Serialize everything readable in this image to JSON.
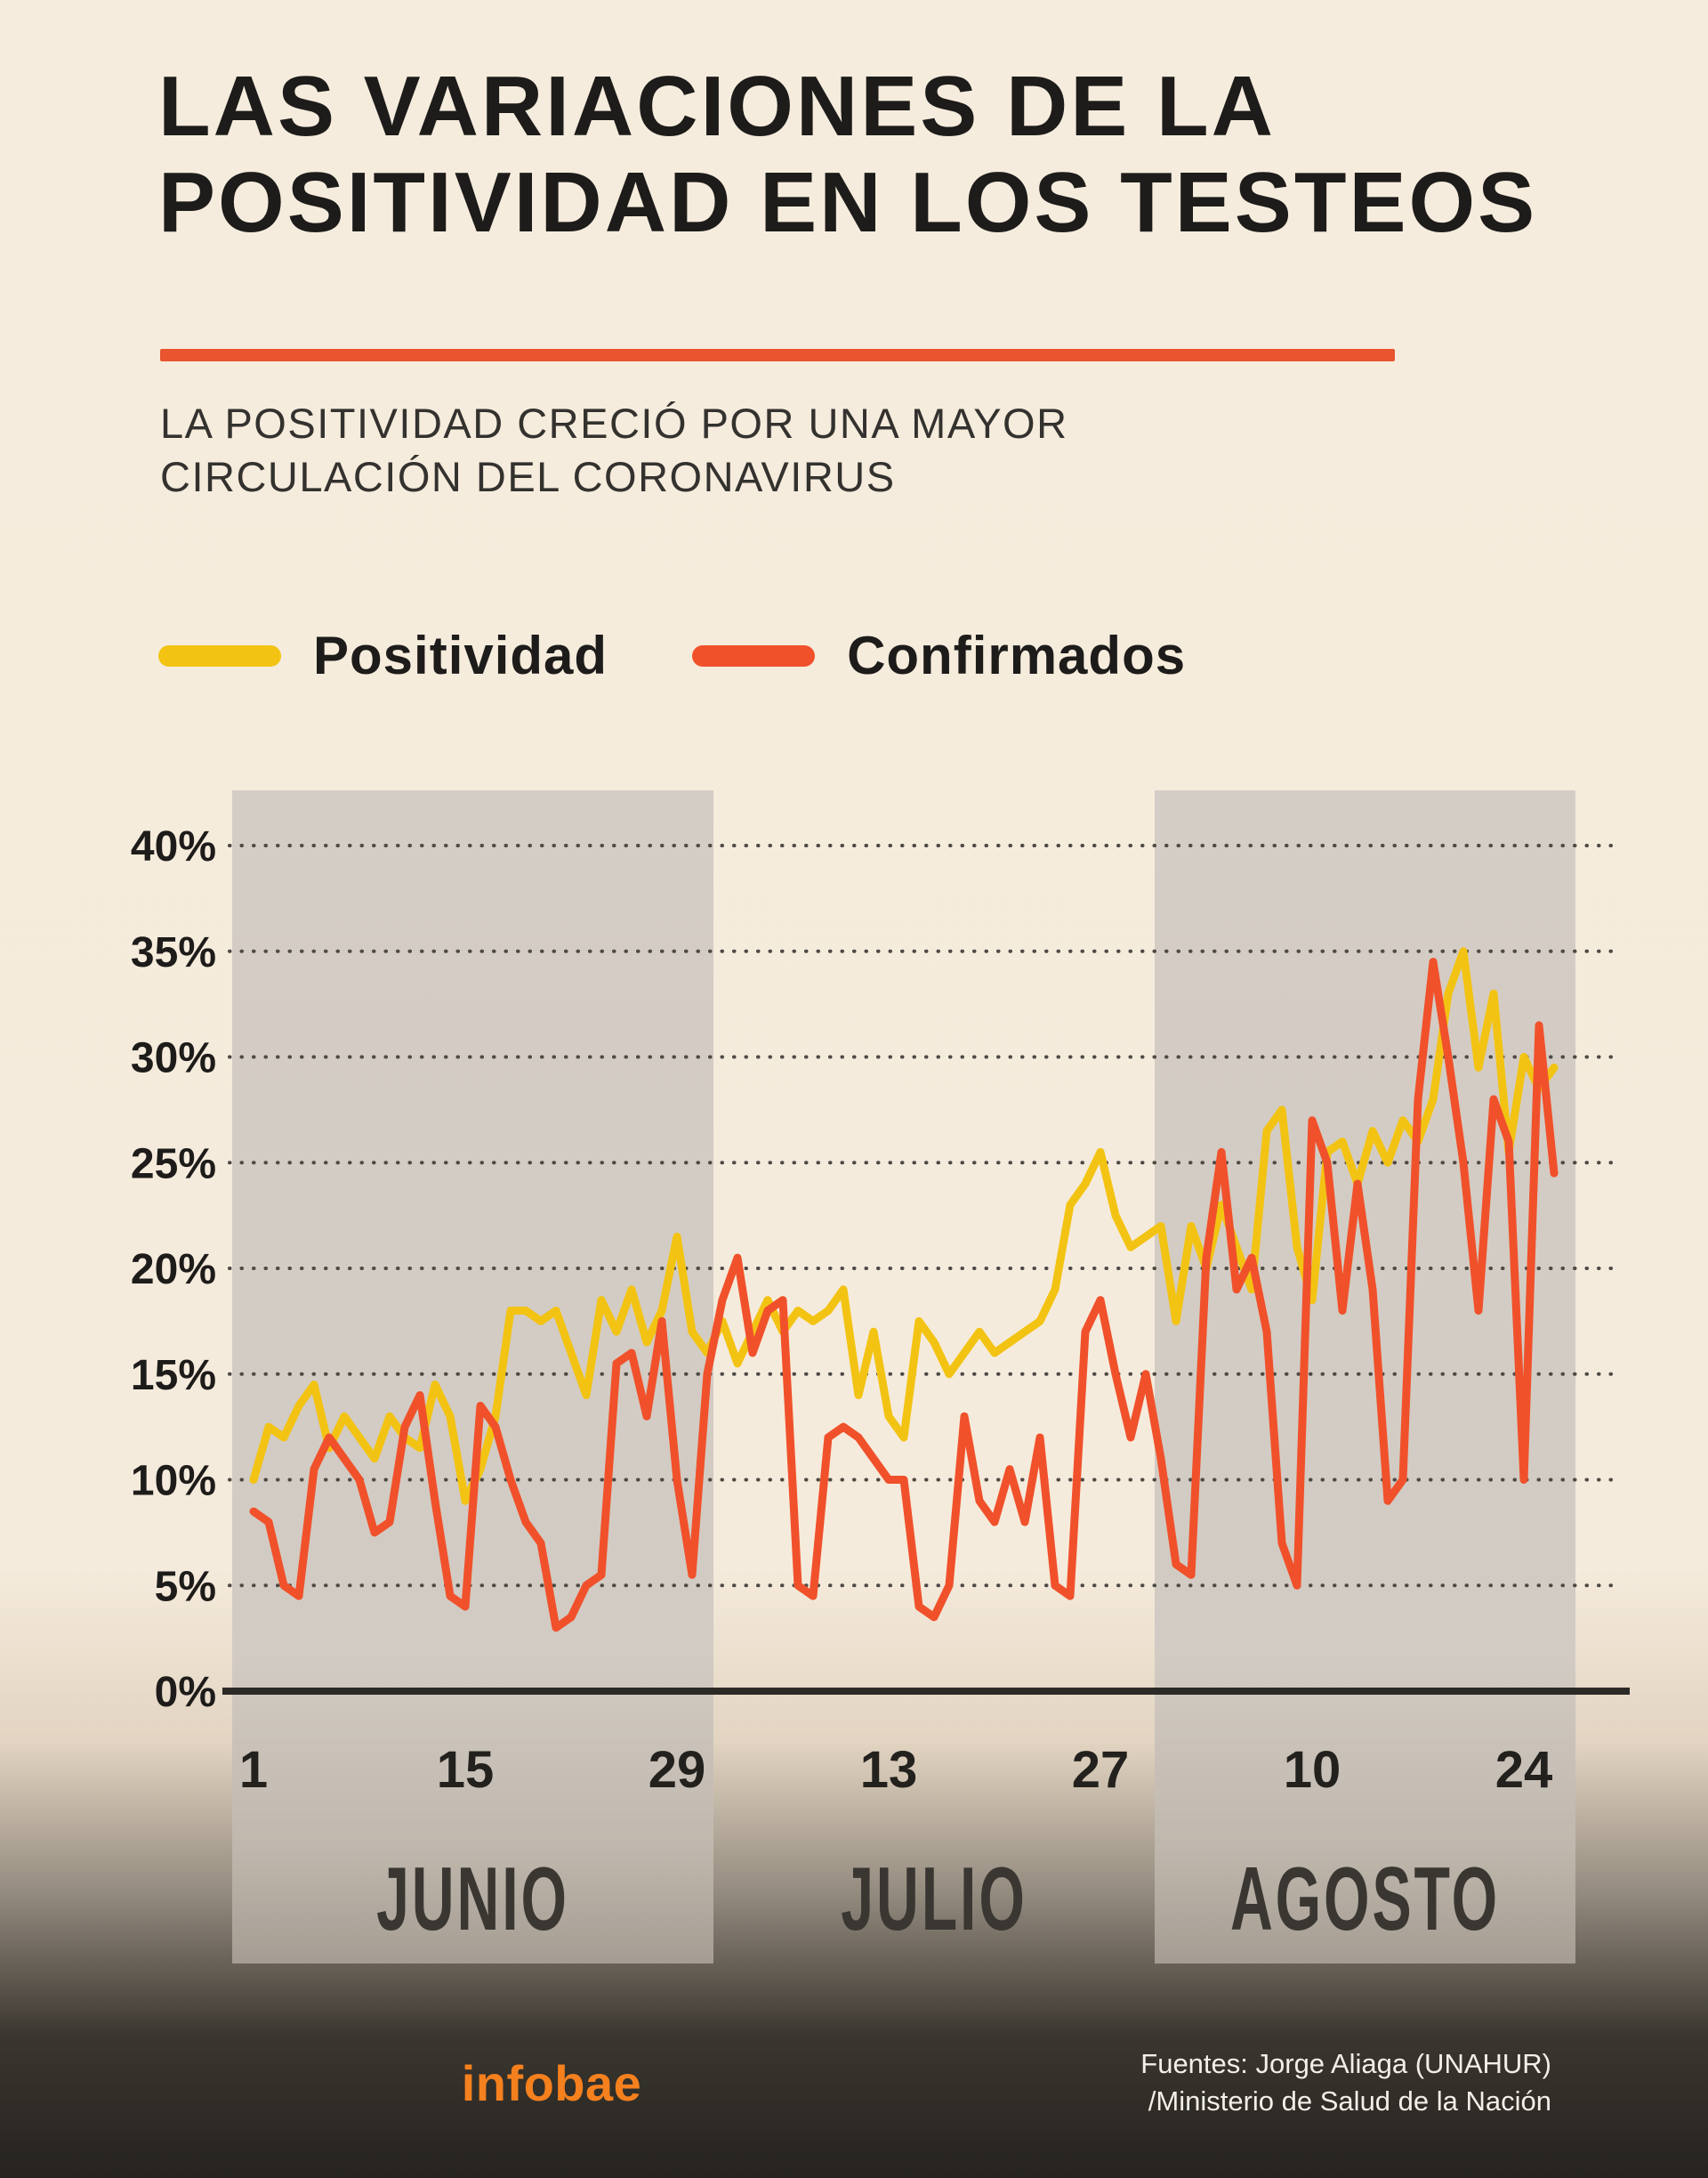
{
  "header": {
    "title_line1": "LAS VARIACIONES DE LA",
    "title_line2": "POSITIVIDAD EN LOS TESTEOS",
    "subtitle_line1": "LA POSITIVIDAD CRECIÓ POR UNA MAYOR",
    "subtitle_line2": "CIRCULACIÓN DEL CORONAVIRUS",
    "accent_color": "#E8552F"
  },
  "legend": [
    {
      "label": "Positividad",
      "color": "#F3C313"
    },
    {
      "label": "Confirmados",
      "color": "#F0512B"
    }
  ],
  "footer": {
    "brand": "infobae",
    "brand_color": "#F5801E",
    "source_line1": "Fuentes: Jorge Aliaga (UNAHUR)",
    "source_line2": "/Ministerio de Salud de la Nación"
  },
  "chart_data": {
    "type": "line",
    "x_description": "Daily values from June 1 to August 26",
    "grid": "dotted",
    "ylim": [
      0,
      42
    ],
    "y_ticks": [
      0,
      5,
      10,
      15,
      20,
      25,
      30,
      35,
      40
    ],
    "y_tick_suffix": "%",
    "x_ticks": [
      {
        "day_index": 0,
        "label": "1"
      },
      {
        "day_index": 14,
        "label": "15"
      },
      {
        "day_index": 28,
        "label": "29"
      },
      {
        "day_index": 42,
        "label": "13"
      },
      {
        "day_index": 56,
        "label": "27"
      },
      {
        "day_index": 70,
        "label": "10"
      },
      {
        "day_index": 84,
        "label": "24"
      }
    ],
    "months": [
      {
        "label": "JUNIO",
        "days": 30,
        "shaded": true
      },
      {
        "label": "JULIO",
        "days": 31,
        "shaded": false
      },
      {
        "label": "AGOSTO",
        "days": 26,
        "shaded": true
      }
    ],
    "band_color": "#D4CDC5",
    "series": [
      {
        "name": "Positividad",
        "color": "#F3C313",
        "values": [
          10,
          12.5,
          12,
          13.5,
          14.5,
          11.5,
          13,
          12,
          11,
          13,
          12,
          11.5,
          14.5,
          13,
          9,
          10.5,
          13,
          18,
          18,
          17.5,
          18,
          16,
          14,
          18.5,
          17,
          19,
          16.5,
          18,
          21.5,
          17,
          16,
          17.5,
          15.5,
          17,
          18.5,
          17,
          18,
          17.5,
          18,
          19,
          14,
          17,
          13,
          12,
          17.5,
          16.5,
          15,
          16,
          17,
          16,
          16.5,
          17,
          17.5,
          19,
          23,
          24,
          25.5,
          22.5,
          21,
          21.5,
          22,
          17.5,
          22,
          20,
          23,
          21,
          19,
          26.5,
          27.5,
          21,
          18.5,
          25.5,
          26,
          24,
          26.5,
          25,
          27,
          26,
          28,
          33,
          35,
          29.5,
          33,
          25.5,
          30,
          28.5,
          29.5
        ]
      },
      {
        "name": "Confirmados",
        "color": "#F0512B",
        "values": [
          8.5,
          8,
          5,
          4.5,
          10.5,
          12,
          11,
          10,
          7.5,
          8,
          12.5,
          14,
          9,
          4.5,
          4,
          13.5,
          12.5,
          10,
          8,
          7,
          3,
          3.5,
          5,
          5.5,
          15.5,
          16,
          13,
          17.5,
          10,
          5.5,
          15,
          18.5,
          20.5,
          16,
          18,
          18.5,
          5,
          4.5,
          12,
          12.5,
          12,
          11,
          10,
          10,
          4,
          3.5,
          5,
          13,
          9,
          8,
          10.5,
          8,
          12,
          5,
          4.5,
          17,
          18.5,
          15,
          12,
          15,
          11,
          6,
          5.5,
          20.5,
          25.5,
          19,
          20.5,
          17,
          7,
          5,
          27,
          25,
          18,
          24,
          19,
          9,
          10,
          28,
          34.5,
          30,
          25,
          18,
          28,
          26,
          10,
          31.5,
          24.5
        ]
      }
    ]
  }
}
